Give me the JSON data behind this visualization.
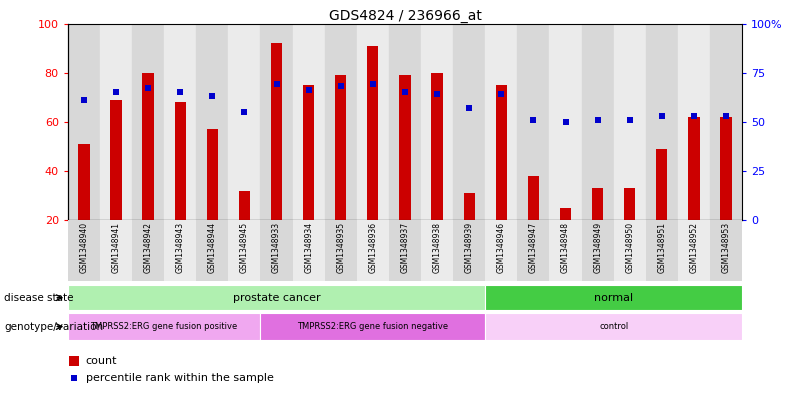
{
  "title": "GDS4824 / 236966_at",
  "samples": [
    "GSM1348940",
    "GSM1348941",
    "GSM1348942",
    "GSM1348943",
    "GSM1348944",
    "GSM1348945",
    "GSM1348933",
    "GSM1348934",
    "GSM1348935",
    "GSM1348936",
    "GSM1348937",
    "GSM1348938",
    "GSM1348939",
    "GSM1348946",
    "GSM1348947",
    "GSM1348948",
    "GSM1348949",
    "GSM1348950",
    "GSM1348951",
    "GSM1348952",
    "GSM1348953"
  ],
  "counts": [
    51,
    69,
    80,
    68,
    57,
    32,
    92,
    75,
    79,
    91,
    79,
    80,
    31,
    75,
    38,
    25,
    33,
    33,
    49,
    62,
    62
  ],
  "percentiles": [
    61,
    65,
    67,
    65,
    63,
    55,
    69,
    66,
    68,
    69,
    65,
    64,
    57,
    64,
    51,
    50,
    51,
    51,
    53,
    53,
    53
  ],
  "y_min": 20,
  "y_max": 100,
  "bar_color": "#cc0000",
  "dot_color": "#0000cc",
  "background_color": "#ffffff",
  "disease_state_groups": [
    {
      "label": "prostate cancer",
      "start": 0,
      "end": 13,
      "color": "#b0f0b0"
    },
    {
      "label": "normal",
      "start": 13,
      "end": 21,
      "color": "#44cc44"
    }
  ],
  "genotype_groups": [
    {
      "label": "TMPRSS2:ERG gene fusion positive",
      "start": 0,
      "end": 6,
      "color": "#f0a8f0"
    },
    {
      "label": "TMPRSS2:ERG gene fusion negative",
      "start": 6,
      "end": 13,
      "color": "#e070e0"
    },
    {
      "label": "control",
      "start": 13,
      "end": 21,
      "color": "#f8d0f8"
    }
  ],
  "right_yticks": [
    0,
    25,
    50,
    75,
    100
  ],
  "right_yticklabels": [
    "0",
    "25",
    "50",
    "75",
    "100%"
  ],
  "left_yticks": [
    20,
    40,
    60,
    80,
    100
  ],
  "left_yticklabels": [
    "20",
    "40",
    "60",
    "80",
    "100"
  ]
}
